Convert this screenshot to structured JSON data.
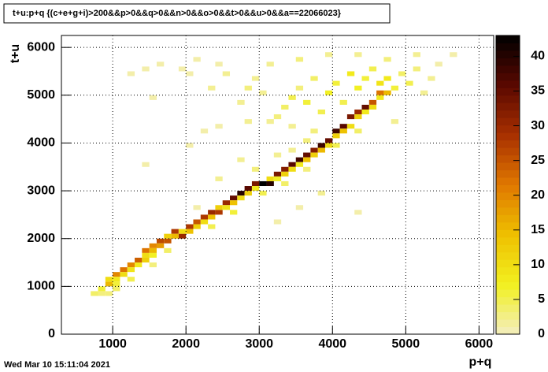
{
  "chart_data": {
    "type": "heatmap",
    "title": "t+u:p+q {(c+e+g+i)>200&&p>0&&q>0&&n>0&&o>0&&t>0&&u>0&&a==22066023}",
    "x_label": "p+q",
    "y_label": "t+u",
    "footer": "Wed Mar 10 15:11:04 2021",
    "bin_size": [
      100,
      100
    ],
    "x": [
      900,
      900,
      1000,
      1100,
      1200,
      1300,
      1400,
      1500,
      1600,
      1700,
      1800,
      1900,
      2000,
      2100,
      2200,
      2300,
      2400,
      2500,
      2600,
      2700,
      2800,
      2900,
      3000,
      3100,
      3200,
      3300,
      3400,
      3500,
      3600,
      3700,
      3800,
      3900,
      4000,
      4100,
      4200,
      4300,
      4400,
      4500,
      4600,
      4700,
      700,
      800,
      800,
      1000,
      1000,
      1100,
      1200,
      1300,
      1400,
      1400,
      1500,
      1500,
      1600,
      1700,
      1800,
      1900,
      2000,
      2100,
      2200,
      2300,
      2400,
      2500,
      2600,
      2700,
      2800,
      2900,
      3100,
      3200,
      3300,
      3400,
      3500,
      3600,
      3700,
      3800,
      3900,
      4000,
      4100,
      4200,
      4300,
      4400,
      4500,
      4600,
      1200,
      1700,
      2300,
      2600,
      3000,
      3300,
      3600,
      4000,
      4300,
      1500,
      1000,
      900,
      3200,
      3300,
      3400,
      3500,
      3600,
      3700,
      3800,
      3900,
      4000,
      4100,
      4200,
      4300,
      4400,
      4500,
      4600,
      4700,
      4800,
      4900,
      5000,
      5100,
      5200,
      5300,
      5400,
      3000,
      2900,
      2800,
      2700,
      2500,
      2400,
      2300,
      2100,
      2000,
      1900,
      1600,
      1400,
      1200,
      3100,
      3500,
      3900,
      4300,
      4700,
      5100,
      5600,
      4800,
      3700,
      3400,
      3100,
      2200,
      2400,
      2800,
      1500,
      1400,
      2000,
      3500,
      3800,
      4300,
      3200,
      2700,
      2400,
      2100,
      2900,
      3200,
      3400,
      3600
    ],
    "y": [
      1000,
      1100,
      1200,
      1300,
      1400,
      1500,
      1700,
      1800,
      1900,
      1900,
      2100,
      2000,
      2200,
      2300,
      2400,
      2500,
      2500,
      2700,
      2800,
      2900,
      3000,
      3100,
      3100,
      3100,
      3300,
      3400,
      3500,
      3600,
      3700,
      3800,
      3900,
      4000,
      4200,
      4300,
      4500,
      4600,
      4700,
      4800,
      5000,
      5000,
      800,
      800,
      900,
      1000,
      1100,
      1200,
      1300,
      1400,
      1500,
      1600,
      1600,
      1700,
      1800,
      2000,
      2000,
      2100,
      2100,
      2200,
      2300,
      2400,
      2600,
      2600,
      2700,
      2800,
      2900,
      3000,
      3200,
      3200,
      3300,
      3400,
      3500,
      3600,
      3700,
      3800,
      3900,
      4100,
      4200,
      4300,
      4500,
      4600,
      4700,
      4900,
      1100,
      1700,
      2200,
      2500,
      2900,
      3100,
      3400,
      3900,
      4200,
      1400,
      900,
      800,
      4500,
      4700,
      4900,
      5100,
      4800,
      5300,
      4600,
      5000,
      5200,
      4800,
      5400,
      5100,
      5300,
      5500,
      5200,
      5300,
      5100,
      5400,
      5200,
      5500,
      5000,
      5300,
      5600,
      5000,
      5300,
      5100,
      4800,
      5400,
      5600,
      5100,
      5700,
      5400,
      5500,
      5600,
      5500,
      5400,
      5600,
      5700,
      5800,
      5800,
      5700,
      5800,
      5800,
      4400,
      4200,
      4300,
      4400,
      4200,
      4300,
      4400,
      4900,
      3500,
      3900,
      2600,
      2900,
      2500,
      2300,
      3600,
      3200,
      2600,
      3400,
      3700,
      3800,
      4000
    ],
    "values": [
      15,
      10,
      20,
      22,
      20,
      24,
      22,
      20,
      26,
      25,
      28,
      30,
      28,
      25,
      28,
      30,
      28,
      30,
      35,
      40,
      36,
      33,
      43,
      40,
      33,
      32,
      36,
      38,
      35,
      32,
      38,
      35,
      38,
      36,
      33,
      30,
      35,
      25,
      22,
      15,
      4,
      3,
      6,
      6,
      8,
      10,
      9,
      8,
      12,
      10,
      7,
      15,
      18,
      12,
      15,
      10,
      14,
      12,
      10,
      14,
      12,
      9,
      14,
      10,
      12,
      8,
      10,
      7,
      12,
      10,
      8,
      14,
      12,
      15,
      10,
      12,
      14,
      10,
      12,
      8,
      10,
      8,
      5,
      4,
      5,
      6,
      5,
      4,
      3,
      5,
      4,
      3,
      4,
      3,
      3,
      4,
      5,
      3,
      6,
      4,
      5,
      7,
      6,
      5,
      8,
      7,
      6,
      5,
      9,
      8,
      6,
      4,
      5,
      3,
      2,
      2,
      1,
      2,
      2,
      3,
      2,
      2,
      1,
      2,
      1,
      1,
      1,
      1,
      1,
      1,
      2,
      3,
      2,
      2,
      3,
      2,
      1,
      2,
      3,
      2,
      2,
      1,
      1,
      2,
      1,
      1,
      1,
      1,
      2,
      1,
      1,
      2,
      2,
      1,
      3,
      2,
      2,
      3
    ],
    "xlim": [
      300,
      6200
    ],
    "ylim": [
      0,
      6250
    ],
    "zlim": [
      0,
      43
    ],
    "xticks": [
      1000,
      2000,
      3000,
      4000,
      5000,
      6000
    ],
    "yticks": [
      0,
      1000,
      2000,
      3000,
      4000,
      5000,
      6000
    ],
    "zticks": [
      0,
      5,
      10,
      15,
      20,
      25,
      30,
      35,
      40
    ],
    "grid": true,
    "palette": [
      "#f3eec0",
      "#f2f020",
      "#eec000",
      "#e07800",
      "#a83000",
      "#5a0800",
      "#000000"
    ]
  }
}
